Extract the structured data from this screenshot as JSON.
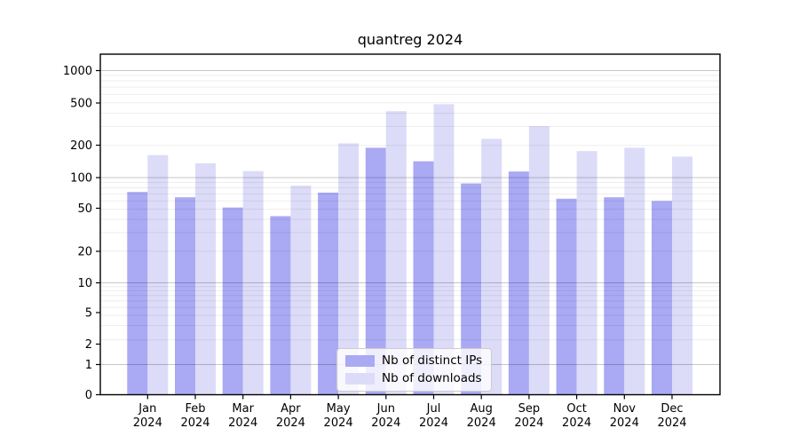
{
  "figure": {
    "title": "quantreg 2024"
  },
  "chart_data": {
    "type": "bar",
    "title": "quantreg 2024",
    "year_label": "2024",
    "months": [
      "Jan",
      "Feb",
      "Mar",
      "Apr",
      "May",
      "Jun",
      "Jul",
      "Aug",
      "Sep",
      "Oct",
      "Nov",
      "Dec"
    ],
    "categories": [
      "Jan 2024",
      "Feb 2024",
      "Mar 2024",
      "Apr 2024",
      "May 2024",
      "Jun 2024",
      "Jul 2024",
      "Aug 2024",
      "Sep 2024",
      "Oct 2024",
      "Nov 2024",
      "Dec 2024"
    ],
    "series": [
      {
        "name": "Nb of distinct IPs",
        "color": "#a9a9f4",
        "values": [
          73,
          65,
          52,
          43,
          72,
          190,
          142,
          88,
          114,
          63,
          65,
          60
        ]
      },
      {
        "name": "Nb of downloads",
        "color": "#dcdcf8",
        "values": [
          162,
          136,
          115,
          84,
          209,
          418,
          485,
          230,
          302,
          177,
          190,
          157
        ]
      }
    ],
    "xlabel": "",
    "ylabel": "",
    "yscale": "symlog",
    "ylim": [
      0,
      1300
    ],
    "yticks": [
      0,
      1,
      2,
      5,
      10,
      20,
      50,
      100,
      200,
      500,
      1000
    ],
    "grid": true,
    "legend_position": "lower center",
    "colors": {
      "axis": "#000000",
      "major_grid": "rgba(0,0,0,0.22)",
      "minor_grid": "rgba(0,0,0,0.07)",
      "background": "#ffffff"
    }
  }
}
